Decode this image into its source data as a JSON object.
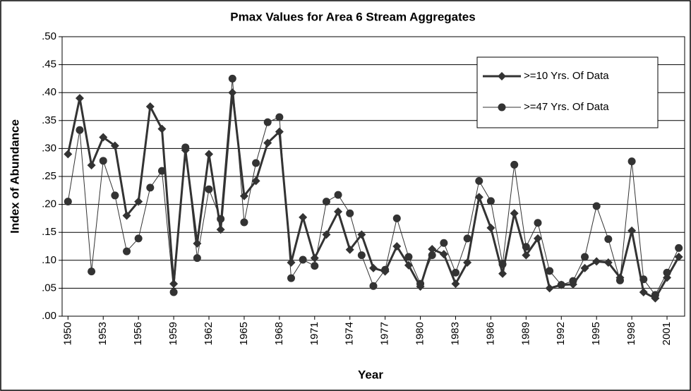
{
  "chart_data": {
    "type": "line",
    "title": "Pmax Values for Area 6 Stream Aggregates",
    "x_label": "Year",
    "y_label": "Index of Abundance",
    "x": [
      1950,
      1951,
      1952,
      1953,
      1954,
      1955,
      1956,
      1957,
      1958,
      1959,
      1960,
      1961,
      1962,
      1963,
      1964,
      1965,
      1966,
      1967,
      1968,
      1969,
      1970,
      1971,
      1972,
      1973,
      1974,
      1975,
      1976,
      1977,
      1978,
      1979,
      1980,
      1981,
      1982,
      1983,
      1984,
      1985,
      1986,
      1987,
      1988,
      1989,
      1990,
      1991,
      1992,
      1993,
      1994,
      1995,
      1996,
      1997,
      1998,
      1999,
      2000,
      2001,
      2002
    ],
    "xlim": [
      1949.5,
      2002.5
    ],
    "xticks": [
      1950,
      1953,
      1956,
      1959,
      1962,
      1965,
      1968,
      1971,
      1974,
      1977,
      1980,
      1983,
      1986,
      1989,
      1992,
      1995,
      1998,
      2001
    ],
    "ylim": [
      0,
      0.5
    ],
    "yticks": [
      {
        "value": 0,
        "label": ".00"
      },
      {
        "value": 0.05,
        "label": ".05"
      },
      {
        "value": 0.1,
        "label": ".10"
      },
      {
        "value": 0.15,
        "label": ".15"
      },
      {
        "value": 0.2,
        "label": ".20"
      },
      {
        "value": 0.25,
        "label": ".25"
      },
      {
        "value": 0.3,
        "label": ".30"
      },
      {
        "value": 0.35,
        "label": ".35"
      },
      {
        "value": 0.4,
        "label": ".40"
      },
      {
        "value": 0.45,
        "label": ".45"
      },
      {
        "value": 0.5,
        "label": ".50"
      }
    ],
    "grid": true,
    "legend": "upper right",
    "series": [
      {
        "name": ">=10 Yrs. Of Data",
        "color": "#333333",
        "marker": "diamond",
        "width": 3,
        "values": [
          0.29,
          0.39,
          0.27,
          0.32,
          0.305,
          0.18,
          0.205,
          0.375,
          0.335,
          0.058,
          0.297,
          0.13,
          0.29,
          0.155,
          0.4,
          0.215,
          0.242,
          0.31,
          0.33,
          0.096,
          0.177,
          0.104,
          0.146,
          0.187,
          0.119,
          0.146,
          0.086,
          0.08,
          0.125,
          0.091,
          0.053,
          0.12,
          0.111,
          0.058,
          0.096,
          0.213,
          0.158,
          0.076,
          0.184,
          0.109,
          0.139,
          0.05,
          0.056,
          0.057,
          0.086,
          0.098,
          0.096,
          0.069,
          0.153,
          0.043,
          0.032,
          0.069,
          0.106
        ]
      },
      {
        "name": ">=47 Yrs. Of Data",
        "color": "#333333",
        "marker": "circle",
        "width": 1,
        "values": [
          0.205,
          0.333,
          0.08,
          0.278,
          0.216,
          0.116,
          0.139,
          0.23,
          0.26,
          0.043,
          0.302,
          0.104,
          0.227,
          0.174,
          0.425,
          0.168,
          0.274,
          0.347,
          0.356,
          0.068,
          0.101,
          0.09,
          0.205,
          0.217,
          0.184,
          0.109,
          0.054,
          0.083,
          0.175,
          0.106,
          0.058,
          0.109,
          0.131,
          0.078,
          0.139,
          0.242,
          0.206,
          0.093,
          0.271,
          0.124,
          0.167,
          0.081,
          0.056,
          0.063,
          0.106,
          0.197,
          0.138,
          0.064,
          0.277,
          0.066,
          0.038,
          0.078,
          0.122
        ]
      }
    ]
  }
}
